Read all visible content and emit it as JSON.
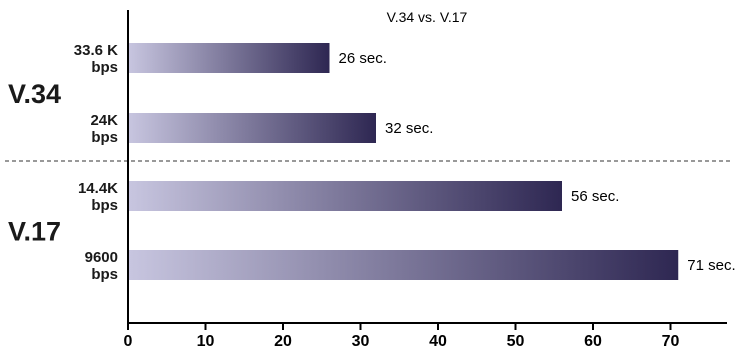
{
  "chart_data": {
    "type": "bar",
    "orientation": "horizontal",
    "title": "V.34 vs. V.17",
    "categories": [
      [
        "33.6 K",
        "bps"
      ],
      [
        "24K",
        "bps"
      ],
      [
        "14.4K",
        "bps"
      ],
      [
        "9600",
        "bps"
      ]
    ],
    "values": [
      26,
      32,
      56,
      71
    ],
    "data_labels": [
      "26 sec.",
      "32 sec.",
      "56 sec.",
      "71 sec."
    ],
    "groups": [
      {
        "name": "V.34",
        "categories": [
          0,
          1
        ]
      },
      {
        "name": "V.17",
        "categories": [
          2,
          3
        ]
      }
    ],
    "x_ticks": [
      "0",
      "10",
      "20",
      "30",
      "40",
      "50",
      "60",
      "70"
    ],
    "xlim": [
      0,
      78
    ],
    "xlabel": "",
    "ylabel": "",
    "grid": false,
    "legend": "none",
    "colors": {
      "bar_start": "#c8c6e0",
      "bar_end": "#2e2752",
      "axis": "#000000",
      "divider": "#333333"
    }
  }
}
